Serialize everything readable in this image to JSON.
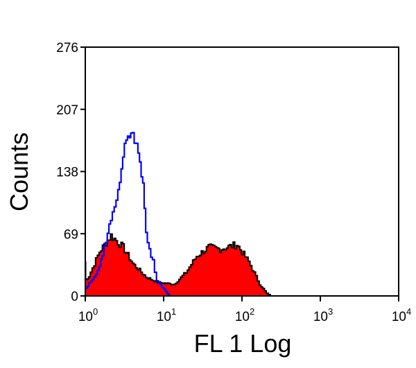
{
  "chart_data": {
    "type": "area",
    "title": "",
    "xlabel": "FL 1 Log",
    "ylabel": "Counts",
    "x_scale": "log",
    "xlim": [
      1,
      10000
    ],
    "ylim": [
      0,
      276
    ],
    "x_ticks": [
      {
        "base": "10",
        "exp": "0"
      },
      {
        "base": "10",
        "exp": "1"
      },
      {
        "base": "10",
        "exp": "2"
      },
      {
        "base": "10",
        "exp": "3"
      },
      {
        "base": "10",
        "exp": "4"
      }
    ],
    "y_ticks": [
      "0",
      "69",
      "138",
      "207",
      "276"
    ],
    "grid": false,
    "series": [
      {
        "style": "filled",
        "fill": "#ff0000",
        "stroke": "#000000",
        "x": [
          1,
          1.01,
          1.1,
          1.5,
          2.1,
          3.0,
          3.98,
          5.9,
          8.3,
          13.5,
          19,
          26,
          37,
          52,
          85,
          120,
          166,
          204,
          230
        ],
        "y": [
          38,
          18,
          22,
          49,
          67,
          54,
          36,
          21,
          15,
          13,
          26,
          44,
          54,
          52,
          57,
          38,
          13,
          3,
          0
        ]
      },
      {
        "style": "line",
        "stroke": "#0000ff",
        "x": [
          1,
          1.5,
          2.1,
          2.6,
          3.0,
          3.3,
          3.98,
          4.7,
          5.4,
          5.9,
          7.2,
          8.1,
          11.7
        ],
        "y": [
          8,
          31,
          88,
          115,
          159,
          177,
          182,
          159,
          121,
          69,
          38,
          18,
          0
        ]
      }
    ]
  }
}
